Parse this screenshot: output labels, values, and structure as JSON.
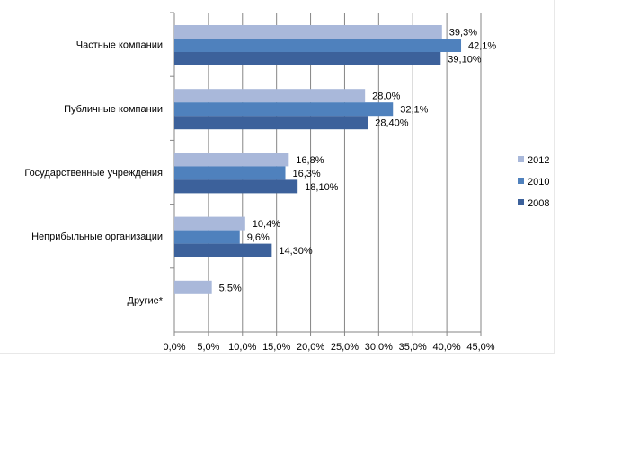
{
  "chart_data": {
    "type": "bar",
    "orientation": "horizontal",
    "categories": [
      "Частные компании",
      "Публичные компании",
      "Государственные учреждения",
      "Неприбыльные организации",
      "Другие*"
    ],
    "series": [
      {
        "name": "2012",
        "color": "#a9b8da",
        "values": [
          39.3,
          28.0,
          16.8,
          10.4,
          5.5
        ],
        "labels": [
          "39,3%",
          "28,0%",
          "16,8%",
          "10,4%",
          "5,5%"
        ]
      },
      {
        "name": "2010",
        "color": "#4f81bd",
        "values": [
          42.1,
          32.1,
          16.3,
          9.6,
          null
        ],
        "labels": [
          "42,1%",
          "32,1%",
          "16,3%",
          "9,6%",
          null
        ]
      },
      {
        "name": "2008",
        "color": "#3c619b",
        "values": [
          39.1,
          28.4,
          18.1,
          14.3,
          null
        ],
        "labels": [
          "39,10%",
          "28,40%",
          "18,10%",
          "14,30%",
          null
        ]
      }
    ],
    "x_ticks": [
      "0,0%",
      "5,0%",
      "10,0%",
      "15,0%",
      "20,0%",
      "25,0%",
      "30,0%",
      "35,0%",
      "40,0%",
      "45,0%"
    ],
    "xlim": [
      0,
      45
    ],
    "grid": true,
    "legend_position": "right",
    "legend_order": [
      "2012",
      "2010",
      "2008"
    ],
    "title": "",
    "xlabel": "",
    "ylabel": ""
  }
}
